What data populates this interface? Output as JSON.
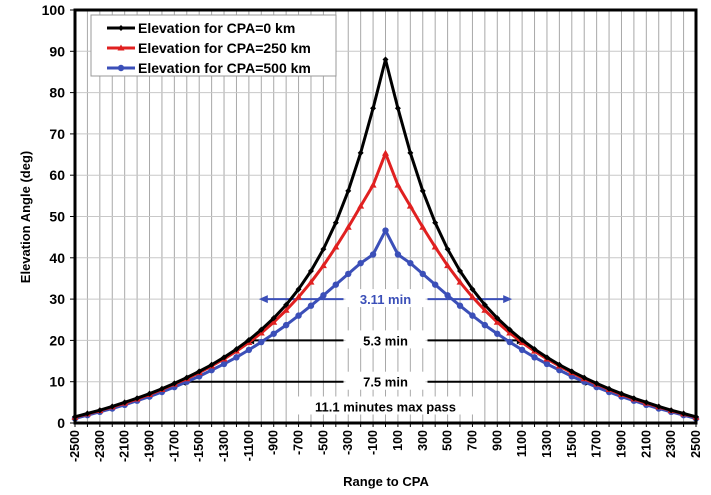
{
  "chart_data": {
    "type": "line",
    "title": "",
    "xlabel": "Range to CPA",
    "ylabel": "Elevation Angle (deg)",
    "xlim": [
      -2500,
      2500
    ],
    "ylim": [
      0,
      100
    ],
    "x_tick_labels": [
      "-2500",
      "-2300",
      "-2100",
      "-1900",
      "-1700",
      "-1500",
      "-1300",
      "-1100",
      "-900",
      "-700",
      "-500",
      "-300",
      "-100",
      "100",
      "300",
      "500",
      "700",
      "900",
      "1100",
      "1300",
      "1500",
      "1700",
      "1900",
      "2100",
      "2300",
      "2500"
    ],
    "y_tick_labels": [
      "0",
      "10",
      "20",
      "30",
      "40",
      "50",
      "60",
      "70",
      "80",
      "90",
      "100"
    ],
    "grid": true,
    "legend_position": "top-left",
    "x": [
      -2500,
      -2400,
      -2300,
      -2200,
      -2100,
      -2000,
      -1900,
      -1800,
      -1700,
      -1600,
      -1500,
      -1400,
      -1300,
      -1200,
      -1100,
      -1000,
      -900,
      -800,
      -700,
      -600,
      -500,
      -400,
      -300,
      -200,
      -100,
      0,
      100,
      200,
      300,
      400,
      500,
      600,
      700,
      800,
      900,
      1000,
      1100,
      1200,
      1300,
      1400,
      1500,
      1600,
      1700,
      1800,
      1900,
      2000,
      2100,
      2200,
      2300,
      2400,
      2500
    ],
    "series": [
      {
        "name": "Elevation for CPA=0 km",
        "color": "#000000",
        "marker": "diamond",
        "values": [
          1.5,
          2.3,
          3.1,
          4.0,
          5.0,
          6.0,
          7.1,
          8.3,
          9.6,
          11.0,
          12.5,
          14.1,
          15.9,
          17.9,
          20.1,
          22.6,
          25.4,
          28.6,
          32.4,
          36.8,
          42.1,
          48.5,
          56.2,
          65.4,
          76.2,
          88.0,
          76.2,
          65.4,
          56.2,
          48.5,
          42.1,
          36.8,
          32.4,
          28.6,
          25.4,
          22.6,
          20.1,
          17.9,
          15.9,
          14.1,
          12.5,
          11.0,
          9.6,
          8.3,
          7.1,
          6.0,
          5.0,
          4.0,
          3.1,
          2.3,
          1.5
        ]
      },
      {
        "name": "Elevation for CPA=250 km",
        "color": "#e02020",
        "marker": "triangle",
        "values": [
          1.4,
          2.2,
          3.0,
          3.9,
          4.8,
          5.8,
          6.9,
          8.1,
          9.4,
          10.7,
          12.2,
          13.8,
          15.5,
          17.4,
          19.5,
          21.8,
          24.4,
          27.3,
          30.5,
          34.1,
          38.1,
          42.6,
          47.4,
          52.5,
          57.6,
          65.3,
          57.6,
          52.5,
          47.4,
          42.6,
          38.1,
          34.1,
          30.5,
          27.3,
          24.4,
          21.8,
          19.5,
          17.4,
          15.5,
          13.8,
          12.2,
          10.7,
          9.4,
          8.1,
          6.9,
          5.8,
          4.8,
          3.9,
          3.0,
          2.2,
          1.4
        ]
      },
      {
        "name": "Elevation for CPA=500 km",
        "color": "#3b4fb8",
        "marker": "circle",
        "values": [
          1.1,
          1.9,
          2.7,
          3.5,
          4.4,
          5.4,
          6.4,
          7.5,
          8.7,
          10.0,
          11.3,
          12.8,
          14.3,
          15.9,
          17.7,
          19.6,
          21.6,
          23.7,
          26.0,
          28.4,
          30.9,
          33.5,
          36.1,
          38.7,
          40.8,
          46.6,
          40.8,
          38.7,
          36.1,
          33.5,
          30.9,
          28.4,
          26.0,
          23.7,
          21.6,
          19.6,
          17.7,
          15.9,
          14.3,
          12.8,
          11.3,
          10.0,
          8.7,
          7.5,
          6.4,
          5.4,
          4.4,
          3.5,
          2.7,
          1.9,
          1.1
        ]
      }
    ],
    "annotations": [
      {
        "text": "3.11 min",
        "color": "#3b4fb8",
        "elevation": 30,
        "x_left": -1020,
        "x_right": 1020
      },
      {
        "text": "5.3 min",
        "color": "#000000",
        "elevation": 20,
        "x_left": -1130,
        "x_right": 1130
      },
      {
        "text": "7.5 min",
        "color": "#000000",
        "elevation": 10,
        "x_left": -1680,
        "x_right": 1680
      },
      {
        "text": "11.1 minutes max pass",
        "color": "#000000",
        "elevation": 4
      }
    ]
  }
}
